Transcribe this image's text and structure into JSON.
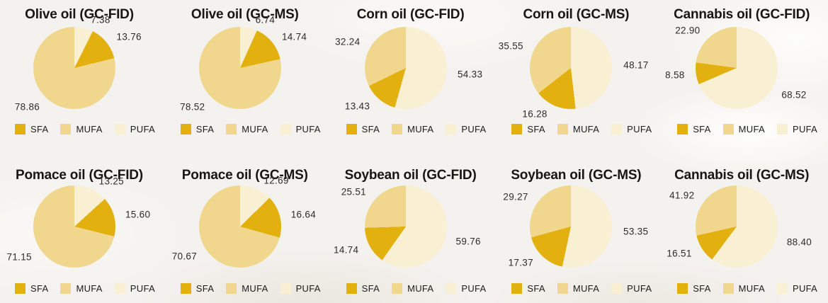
{
  "figure": {
    "background": "#f4f2ee"
  },
  "colors": {
    "sfa": "#e2b10f",
    "mufa": "#f0d78d",
    "pufa": "#f9f0d4"
  },
  "legend": {
    "labels": [
      "SFA",
      "MUFA",
      "PUFA"
    ]
  },
  "chart_meta": {
    "type": "pie-grid",
    "rows": 2,
    "cols": 5,
    "value_labels": "outside",
    "legend_position": "bottom-left",
    "slice_order_clockwise_from_top": [
      "PUFA",
      "SFA",
      "MUFA"
    ]
  },
  "chart_data": [
    {
      "type": "pie",
      "row": 1,
      "col": 1,
      "title": "Olive oil (GC-FID)",
      "labels": [
        "SFA",
        "MUFA",
        "PUFA"
      ],
      "values": {
        "sfa": 13.76,
        "mufa": 78.86,
        "pufa": 7.38
      }
    },
    {
      "type": "pie",
      "row": 1,
      "col": 2,
      "title": "Olive oil (GC-MS)",
      "labels": [
        "SFA",
        "MUFA",
        "PUFA"
      ],
      "values": {
        "sfa": 14.74,
        "mufa": 78.52,
        "pufa": 6.74
      }
    },
    {
      "type": "pie",
      "row": 1,
      "col": 3,
      "title": "Corn oil (GC-FID)",
      "labels": [
        "SFA",
        "MUFA",
        "PUFA"
      ],
      "values": {
        "sfa": 13.43,
        "mufa": 32.24,
        "pufa": 54.33
      }
    },
    {
      "type": "pie",
      "row": 1,
      "col": 4,
      "title": "Corn oil (GC-MS)",
      "labels": [
        "SFA",
        "MUFA",
        "PUFA"
      ],
      "values": {
        "sfa": 16.28,
        "mufa": 35.55,
        "pufa": 48.17
      }
    },
    {
      "type": "pie",
      "row": 1,
      "col": 5,
      "title": "Cannabis oil (GC-FID)",
      "labels": [
        "SFA",
        "MUFA",
        "PUFA"
      ],
      "values": {
        "sfa": 8.58,
        "mufa": 22.9,
        "pufa": 68.52
      }
    },
    {
      "type": "pie",
      "row": 2,
      "col": 1,
      "title": "Pomace oil (GC-FID)",
      "labels": [
        "SFA",
        "MUFA",
        "PUFA"
      ],
      "values": {
        "sfa": 15.6,
        "mufa": 71.15,
        "pufa": 13.25
      }
    },
    {
      "type": "pie",
      "row": 2,
      "col": 2,
      "title": "Pomace oil (GC-MS)",
      "labels": [
        "SFA",
        "MUFA",
        "PUFA"
      ],
      "values": {
        "sfa": 16.64,
        "mufa": 70.67,
        "pufa": 12.69
      }
    },
    {
      "type": "pie",
      "row": 2,
      "col": 3,
      "title": "Soybean oil (GC-FID)",
      "labels": [
        "SFA",
        "MUFA",
        "PUFA"
      ],
      "values": {
        "sfa": 14.74,
        "mufa": 25.51,
        "pufa": 59.76
      }
    },
    {
      "type": "pie",
      "row": 2,
      "col": 4,
      "title": "Soybean oil (GC-MS)",
      "labels": [
        "SFA",
        "MUFA",
        "PUFA"
      ],
      "values": {
        "sfa": 17.37,
        "mufa": 29.27,
        "pufa": 53.35
      }
    },
    {
      "type": "pie",
      "row": 2,
      "col": 5,
      "title": "Cannabis oil (GC-MS)",
      "labels": [
        "SFA",
        "MUFA",
        "PUFA"
      ],
      "values": {
        "sfa": 16.51,
        "mufa": 41.92,
        "pufa": 88.4
      }
    }
  ]
}
